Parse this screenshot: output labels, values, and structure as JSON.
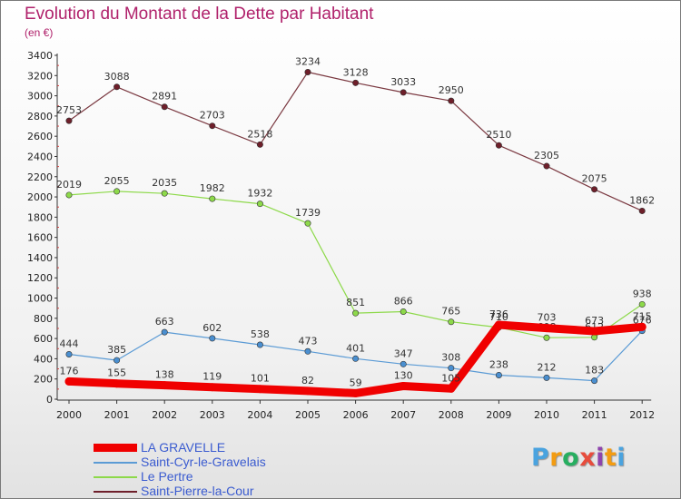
{
  "title": "Evolution du Montant de la Dette par Habitant",
  "subtitle": "(en €)",
  "logo": {
    "text": "Proxiti",
    "letter_colors": [
      "#4aa3df",
      "#f39c12",
      "#27ae60",
      "#e74c3c",
      "#8e44ad",
      "#f39c12",
      "#4aa3df"
    ]
  },
  "legend": [
    {
      "label": "LA GRAVELLE",
      "color": "#f00000"
    },
    {
      "label": "Saint-Cyr-le-Gravelais",
      "color": "#5b9bd5"
    },
    {
      "label": "Le Pertre",
      "color": "#8dd94a"
    },
    {
      "label": "Saint-Pierre-la-Cour",
      "color": "#6e1f2a"
    }
  ],
  "chart_data": {
    "type": "line",
    "title": "Evolution du Montant de la Dette par Habitant",
    "subtitle": "(en €)",
    "x": [
      "2000",
      "2001",
      "2002",
      "2003",
      "2004",
      "2005",
      "2006",
      "2007",
      "2008",
      "2009",
      "2010",
      "2011",
      "2012"
    ],
    "ylim": [
      0,
      3400
    ],
    "yticks": [
      0,
      200,
      400,
      600,
      800,
      1000,
      1200,
      1400,
      1600,
      1800,
      2000,
      2200,
      2400,
      2600,
      2800,
      3000,
      3200,
      3400
    ],
    "grid": false,
    "legend_position": "bottom-left",
    "series": [
      {
        "name": "Saint-Pierre-la-Cour",
        "color": "#6e1f2a",
        "line_color": "#7a3840",
        "width": 1.2,
        "values": [
          2753,
          3088,
          2891,
          2703,
          2518,
          3234,
          3128,
          3033,
          2950,
          2510,
          2305,
          2075,
          1862
        ]
      },
      {
        "name": "Le Pertre",
        "color": "#8dd94a",
        "line_color": "#8dd94a",
        "width": 1.2,
        "values": [
          2019,
          2055,
          2035,
          1982,
          1932,
          1739,
          851,
          866,
          765,
          710,
          608,
          612,
          938
        ]
      },
      {
        "name": "Saint-Cyr-le-Gravelais",
        "color": "#4a8fd0",
        "line_color": "#5b9bd5",
        "width": 1.2,
        "values": [
          444,
          385,
          663,
          602,
          538,
          473,
          401,
          347,
          308,
          238,
          212,
          183,
          676
        ]
      },
      {
        "name": "LA GRAVELLE",
        "color": "#f00000",
        "line_color": "#f00000",
        "width": 9,
        "values": [
          176,
          155,
          138,
          119,
          101,
          82,
          59,
          130,
          105,
          736,
          703,
          673,
          715
        ]
      }
    ]
  }
}
